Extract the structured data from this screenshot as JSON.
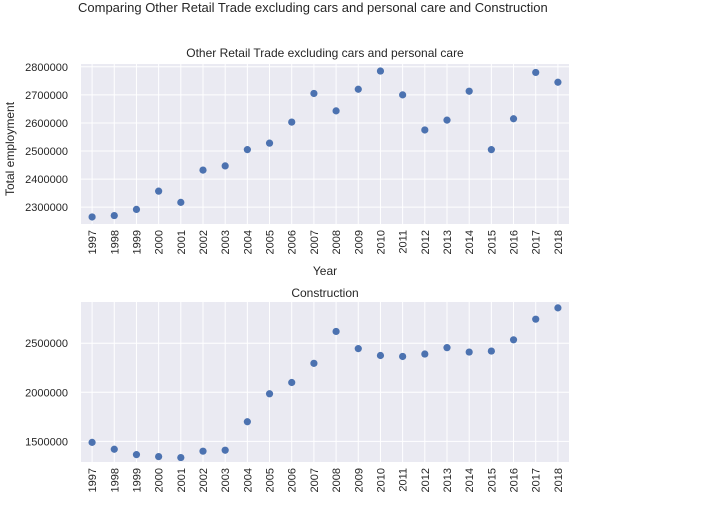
{
  "figure": {
    "suptitle": "Comparing Other Retail Trade excluding cars and personal care and Construction"
  },
  "colors": {
    "background": "#eaeaf2",
    "grid": "#ffffff",
    "points": "#4c72b0"
  },
  "chart_data": [
    {
      "type": "scatter",
      "title": "Other Retail Trade excluding cars and personal care",
      "xlabel": "Year",
      "ylabel": "Total employment",
      "grid": true,
      "x": [
        "1997",
        "1998",
        "1999",
        "2000",
        "2001",
        "2002",
        "2003",
        "2004",
        "2005",
        "2006",
        "2007",
        "2008",
        "2009",
        "2010",
        "2011",
        "2012",
        "2013",
        "2014",
        "2015",
        "2016",
        "2017",
        "2018"
      ],
      "values": [
        2265000,
        2270000,
        2292000,
        2357000,
        2317000,
        2432000,
        2447000,
        2505000,
        2528000,
        2603000,
        2705000,
        2643000,
        2720000,
        2785000,
        2700000,
        2575000,
        2610000,
        2713000,
        2505000,
        2615000,
        2780000,
        2745000
      ],
      "ylim": [
        2240000,
        2810000
      ],
      "yticks": [
        2300000,
        2400000,
        2500000,
        2600000,
        2700000,
        2800000
      ],
      "ytick_labels": [
        "2300000",
        "2400000",
        "2500000",
        "2600000",
        "2700000",
        "2800000"
      ]
    },
    {
      "type": "scatter",
      "title": "Construction",
      "xlabel": "",
      "ylabel": "",
      "grid": true,
      "x": [
        "1997",
        "1998",
        "1999",
        "2000",
        "2001",
        "2002",
        "2003",
        "2004",
        "2005",
        "2006",
        "2007",
        "2008",
        "2009",
        "2010",
        "2011",
        "2012",
        "2013",
        "2014",
        "2015",
        "2016",
        "2017",
        "2018"
      ],
      "values": [
        1490000,
        1420000,
        1365000,
        1345000,
        1335000,
        1400000,
        1410000,
        1700000,
        1985000,
        2100000,
        2295000,
        2620000,
        2445000,
        2375000,
        2365000,
        2390000,
        2455000,
        2410000,
        2420000,
        2535000,
        2745000,
        2860000
      ],
      "ylim": [
        1290000,
        2920000
      ],
      "yticks": [
        1500000,
        2000000,
        2500000
      ],
      "ytick_labels": [
        "1500000",
        "2000000",
        "2500000"
      ]
    }
  ]
}
